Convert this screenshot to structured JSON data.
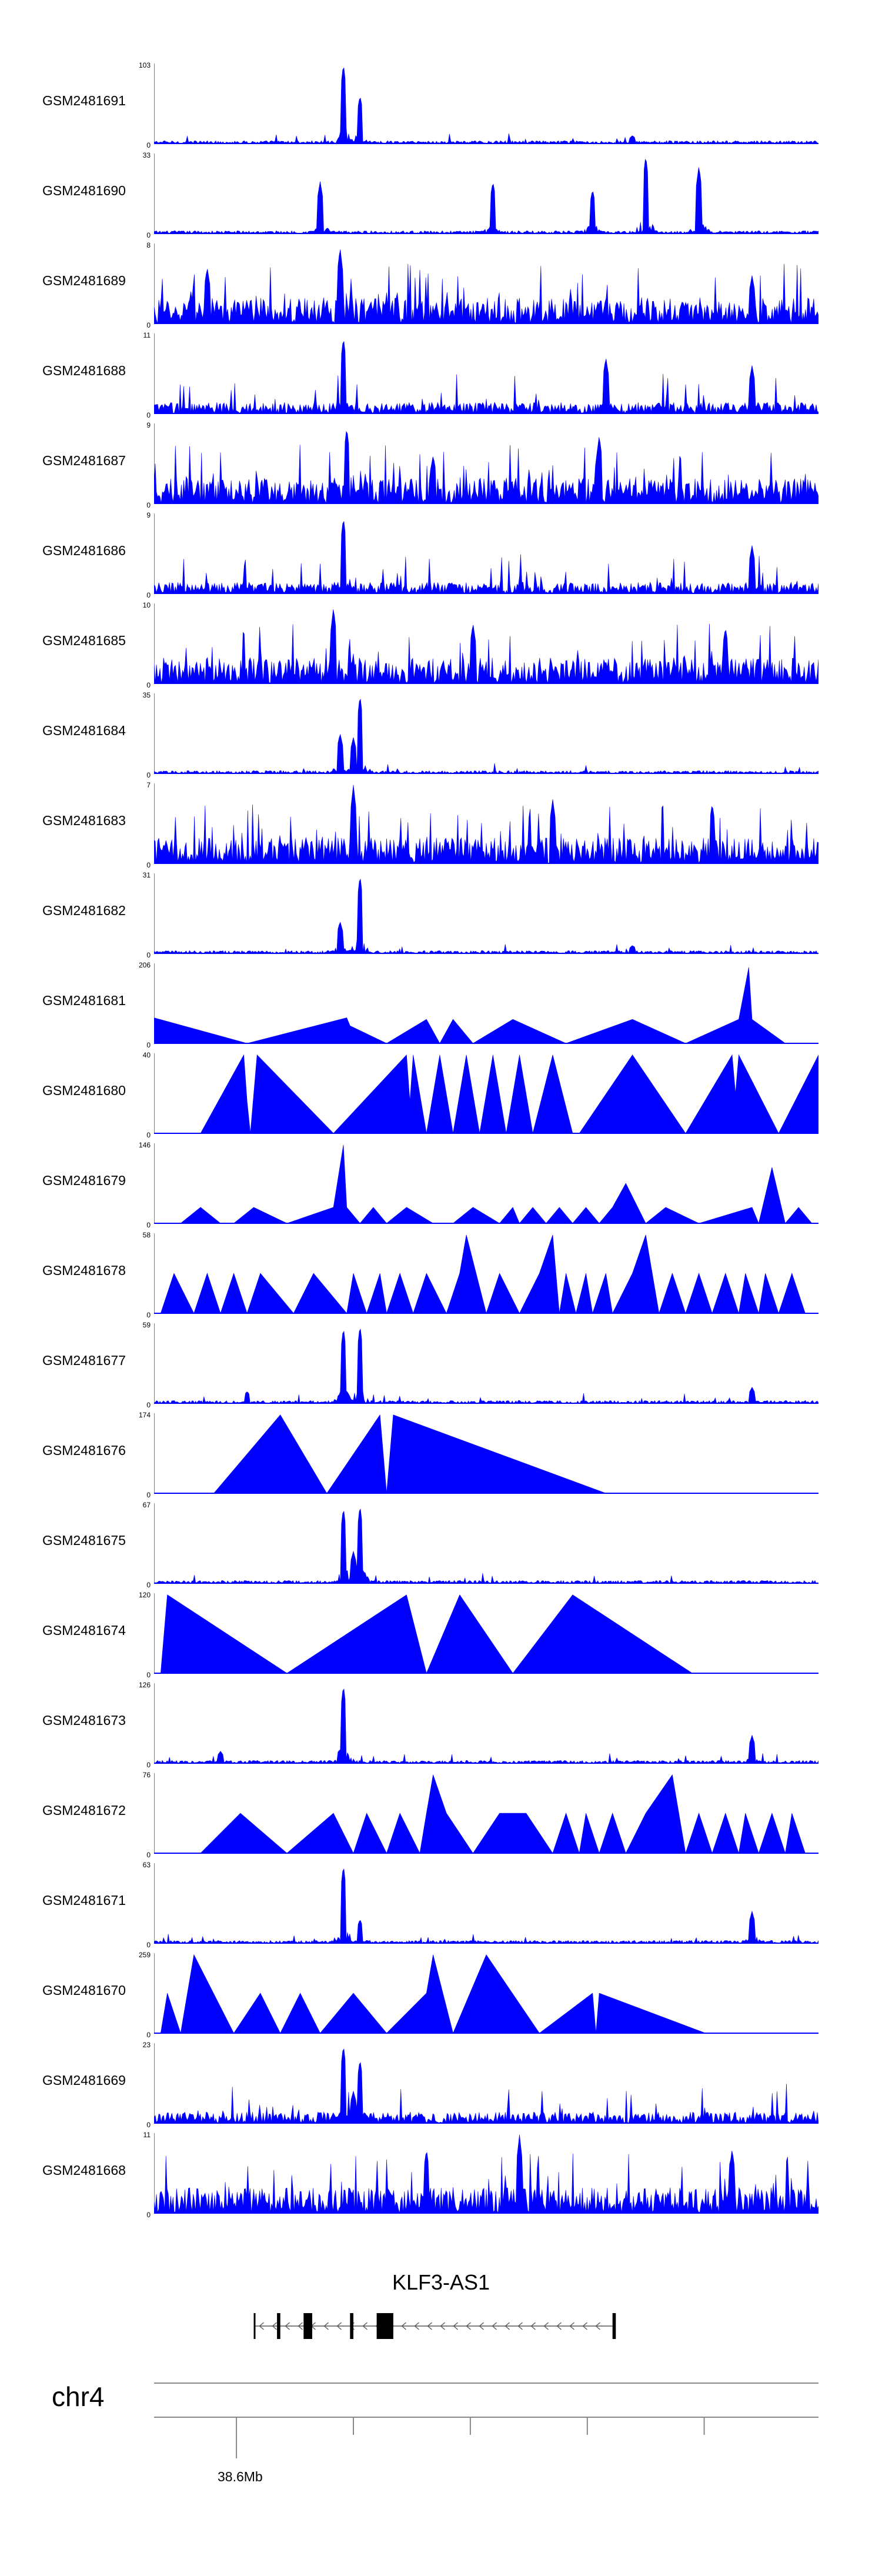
{
  "chart_data": {
    "type": "area",
    "title": "",
    "tracks": [
      {
        "name": "GSM2481691",
        "max": "103",
        "min": "0",
        "pattern": "sparse",
        "peaks": [
          [
            0.285,
            1.0
          ],
          [
            0.31,
            0.6
          ],
          [
            0.72,
            0.1
          ]
        ]
      },
      {
        "name": "GSM2481690",
        "max": "33",
        "min": "0",
        "pattern": "triangles-dense",
        "peaks": [
          [
            0.25,
            0.65
          ],
          [
            0.51,
            0.65
          ],
          [
            0.74,
            0.98
          ],
          [
            0.82,
            0.85
          ],
          [
            0.66,
            0.55
          ]
        ]
      },
      {
        "name": "GSM2481689",
        "max": "8",
        "min": "0",
        "pattern": "dense",
        "peaks": [
          [
            0.28,
            0.95
          ],
          [
            0.08,
            0.7
          ],
          [
            0.9,
            0.6
          ]
        ]
      },
      {
        "name": "GSM2481688",
        "max": "11",
        "min": "0",
        "pattern": "medium",
        "peaks": [
          [
            0.285,
            0.95
          ],
          [
            0.68,
            0.7
          ],
          [
            0.9,
            0.6
          ]
        ]
      },
      {
        "name": "GSM2481687",
        "max": "9",
        "min": "0",
        "pattern": "dense",
        "peaks": [
          [
            0.29,
            0.95
          ],
          [
            0.67,
            0.85
          ],
          [
            0.42,
            0.6
          ]
        ]
      },
      {
        "name": "GSM2481686",
        "max": "9",
        "min": "0",
        "pattern": "medium",
        "peaks": [
          [
            0.285,
            0.95
          ],
          [
            0.9,
            0.6
          ]
        ]
      },
      {
        "name": "GSM2481685",
        "max": "10",
        "min": "0",
        "pattern": "dense",
        "peaks": [
          [
            0.27,
            0.95
          ],
          [
            0.48,
            0.75
          ],
          [
            0.86,
            0.7
          ]
        ]
      },
      {
        "name": "GSM2481684",
        "max": "35",
        "min": "0",
        "pattern": "sparse",
        "peaks": [
          [
            0.31,
            0.98
          ],
          [
            0.28,
            0.5
          ],
          [
            0.3,
            0.45
          ]
        ]
      },
      {
        "name": "GSM2481683",
        "max": "7",
        "min": "0",
        "pattern": "dense",
        "peaks": [
          [
            0.3,
            0.98
          ],
          [
            0.6,
            0.8
          ],
          [
            0.84,
            0.75
          ]
        ]
      },
      {
        "name": "GSM2481682",
        "max": "31",
        "min": "0",
        "pattern": "sparse",
        "peaks": [
          [
            0.31,
            0.98
          ],
          [
            0.28,
            0.4
          ],
          [
            0.72,
            0.1
          ]
        ]
      },
      {
        "name": "GSM2481681",
        "max": "206",
        "min": "0",
        "pattern": "triangles",
        "points": [
          [
            0.0,
            0.32
          ],
          [
            0.14,
            0.0
          ],
          [
            0.29,
            0.32
          ],
          [
            0.295,
            0.22
          ],
          [
            0.35,
            0.0
          ],
          [
            0.41,
            0.3
          ],
          [
            0.43,
            0.0
          ],
          [
            0.45,
            0.3
          ],
          [
            0.48,
            0.0
          ],
          [
            0.54,
            0.3
          ],
          [
            0.62,
            0.0
          ],
          [
            0.72,
            0.3
          ],
          [
            0.8,
            0.0
          ],
          [
            0.88,
            0.3
          ],
          [
            0.895,
            0.95
          ],
          [
            0.9,
            0.3
          ],
          [
            0.95,
            0.0
          ]
        ]
      },
      {
        "name": "GSM2481680",
        "max": "40",
        "min": "0",
        "pattern": "triangles",
        "points": [
          [
            0.07,
            0.0
          ],
          [
            0.135,
            0.98
          ],
          [
            0.14,
            0.4
          ],
          [
            0.145,
            0.0
          ],
          [
            0.155,
            0.98
          ],
          [
            0.27,
            0.0
          ],
          [
            0.38,
            0.98
          ],
          [
            0.385,
            0.4
          ],
          [
            0.39,
            0.98
          ],
          [
            0.41,
            0.0
          ],
          [
            0.43,
            0.98
          ],
          [
            0.45,
            0.0
          ],
          [
            0.47,
            0.98
          ],
          [
            0.49,
            0.0
          ],
          [
            0.51,
            0.98
          ],
          [
            0.53,
            0.0
          ],
          [
            0.55,
            0.98
          ],
          [
            0.57,
            0.0
          ],
          [
            0.6,
            0.98
          ],
          [
            0.63,
            0.0
          ],
          [
            0.64,
            0.0
          ],
          [
            0.72,
            0.98
          ],
          [
            0.8,
            0.0
          ],
          [
            0.87,
            0.98
          ],
          [
            0.875,
            0.5
          ],
          [
            0.88,
            0.98
          ],
          [
            0.94,
            0.0
          ],
          [
            1.0,
            0.98
          ],
          [
            1.0,
            0.0
          ]
        ]
      },
      {
        "name": "GSM2481679",
        "max": "146",
        "min": "0",
        "pattern": "triangles-peaks",
        "points": [
          [
            0.04,
            0.0
          ],
          [
            0.07,
            0.2
          ],
          [
            0.1,
            0.0
          ],
          [
            0.12,
            0.0
          ],
          [
            0.15,
            0.2
          ],
          [
            0.2,
            0.0
          ],
          [
            0.27,
            0.2
          ],
          [
            0.285,
            0.98
          ],
          [
            0.29,
            0.2
          ],
          [
            0.31,
            0.0
          ],
          [
            0.33,
            0.2
          ],
          [
            0.35,
            0.0
          ],
          [
            0.38,
            0.2
          ],
          [
            0.42,
            0.0
          ],
          [
            0.45,
            0.0
          ],
          [
            0.48,
            0.2
          ],
          [
            0.52,
            0.0
          ],
          [
            0.54,
            0.2
          ],
          [
            0.55,
            0.0
          ],
          [
            0.57,
            0.2
          ],
          [
            0.59,
            0.0
          ],
          [
            0.61,
            0.2
          ],
          [
            0.63,
            0.0
          ],
          [
            0.65,
            0.2
          ],
          [
            0.67,
            0.0
          ],
          [
            0.69,
            0.2
          ],
          [
            0.71,
            0.5
          ],
          [
            0.74,
            0.0
          ],
          [
            0.77,
            0.2
          ],
          [
            0.82,
            0.0
          ],
          [
            0.9,
            0.2
          ],
          [
            0.91,
            0.0
          ],
          [
            0.93,
            0.7
          ],
          [
            0.95,
            0.0
          ],
          [
            0.97,
            0.2
          ],
          [
            0.99,
            0.0
          ]
        ]
      },
      {
        "name": "GSM2481678",
        "max": "58",
        "min": "0",
        "pattern": "triangles-peaks",
        "points": [
          [
            0.01,
            0.0
          ],
          [
            0.03,
            0.5
          ],
          [
            0.06,
            0.0
          ],
          [
            0.08,
            0.5
          ],
          [
            0.1,
            0.0
          ],
          [
            0.12,
            0.5
          ],
          [
            0.14,
            0.0
          ],
          [
            0.16,
            0.5
          ],
          [
            0.21,
            0.0
          ],
          [
            0.24,
            0.5
          ],
          [
            0.29,
            0.0
          ],
          [
            0.3,
            0.5
          ],
          [
            0.32,
            0.0
          ],
          [
            0.34,
            0.5
          ],
          [
            0.35,
            0.0
          ],
          [
            0.37,
            0.5
          ],
          [
            0.39,
            0.0
          ],
          [
            0.41,
            0.5
          ],
          [
            0.44,
            0.0
          ],
          [
            0.46,
            0.5
          ],
          [
            0.47,
            0.98
          ],
          [
            0.5,
            0.0
          ],
          [
            0.52,
            0.5
          ],
          [
            0.55,
            0.0
          ],
          [
            0.58,
            0.5
          ],
          [
            0.6,
            0.98
          ],
          [
            0.61,
            0.0
          ],
          [
            0.62,
            0.5
          ],
          [
            0.635,
            0.0
          ],
          [
            0.65,
            0.5
          ],
          [
            0.66,
            0.0
          ],
          [
            0.68,
            0.5
          ],
          [
            0.69,
            0.0
          ],
          [
            0.72,
            0.5
          ],
          [
            0.74,
            0.98
          ],
          [
            0.76,
            0.0
          ],
          [
            0.78,
            0.5
          ],
          [
            0.8,
            0.0
          ],
          [
            0.82,
            0.5
          ],
          [
            0.84,
            0.0
          ],
          [
            0.86,
            0.5
          ],
          [
            0.88,
            0.0
          ],
          [
            0.89,
            0.5
          ],
          [
            0.91,
            0.0
          ],
          [
            0.92,
            0.5
          ],
          [
            0.94,
            0.0
          ],
          [
            0.96,
            0.5
          ],
          [
            0.98,
            0.0
          ]
        ]
      },
      {
        "name": "GSM2481677",
        "max": "59",
        "min": "0",
        "pattern": "sparse",
        "peaks": [
          [
            0.285,
            0.95
          ],
          [
            0.31,
            0.98
          ],
          [
            0.14,
            0.15
          ],
          [
            0.9,
            0.2
          ]
        ]
      },
      {
        "name": "GSM2481676",
        "max": "174",
        "min": "0",
        "pattern": "triangles",
        "points": [
          [
            0.09,
            0.0
          ],
          [
            0.19,
            0.98
          ],
          [
            0.26,
            0.0
          ],
          [
            0.34,
            0.98
          ],
          [
            0.35,
            0.0
          ],
          [
            0.36,
            0.98
          ],
          [
            0.68,
            0.0
          ]
        ]
      },
      {
        "name": "GSM2481675",
        "max": "67",
        "min": "0",
        "pattern": "sparse",
        "peaks": [
          [
            0.285,
            0.95
          ],
          [
            0.31,
            0.98
          ],
          [
            0.3,
            0.4
          ]
        ]
      },
      {
        "name": "GSM2481674",
        "max": "120",
        "min": "0",
        "pattern": "triangles",
        "points": [
          [
            0.01,
            0.0
          ],
          [
            0.02,
            0.98
          ],
          [
            0.2,
            0.0
          ],
          [
            0.38,
            0.98
          ],
          [
            0.41,
            0.0
          ],
          [
            0.46,
            0.98
          ],
          [
            0.54,
            0.0
          ],
          [
            0.63,
            0.98
          ],
          [
            0.81,
            0.0
          ]
        ]
      },
      {
        "name": "GSM2481673",
        "max": "126",
        "min": "0",
        "pattern": "sparse",
        "peaks": [
          [
            0.285,
            0.98
          ],
          [
            0.1,
            0.15
          ],
          [
            0.9,
            0.35
          ]
        ]
      },
      {
        "name": "GSM2481672",
        "max": "76",
        "min": "0",
        "pattern": "triangles-peaks",
        "points": [
          [
            0.07,
            0.0
          ],
          [
            0.13,
            0.5
          ],
          [
            0.2,
            0.0
          ],
          [
            0.27,
            0.5
          ],
          [
            0.3,
            0.0
          ],
          [
            0.32,
            0.5
          ],
          [
            0.35,
            0.0
          ],
          [
            0.37,
            0.5
          ],
          [
            0.4,
            0.0
          ],
          [
            0.41,
            0.5
          ],
          [
            0.42,
            0.98
          ],
          [
            0.44,
            0.5
          ],
          [
            0.48,
            0.0
          ],
          [
            0.52,
            0.5
          ],
          [
            0.56,
            0.5
          ],
          [
            0.6,
            0.0
          ],
          [
            0.62,
            0.5
          ],
          [
            0.64,
            0.0
          ],
          [
            0.65,
            0.5
          ],
          [
            0.67,
            0.0
          ],
          [
            0.69,
            0.5
          ],
          [
            0.71,
            0.0
          ],
          [
            0.74,
            0.5
          ],
          [
            0.78,
            0.98
          ],
          [
            0.8,
            0.0
          ],
          [
            0.82,
            0.5
          ],
          [
            0.84,
            0.0
          ],
          [
            0.86,
            0.5
          ],
          [
            0.88,
            0.0
          ],
          [
            0.89,
            0.5
          ],
          [
            0.91,
            0.0
          ],
          [
            0.93,
            0.5
          ],
          [
            0.95,
            0.0
          ],
          [
            0.96,
            0.5
          ],
          [
            0.98,
            0.0
          ]
        ]
      },
      {
        "name": "GSM2481671",
        "max": "63",
        "min": "0",
        "pattern": "sparse",
        "peaks": [
          [
            0.285,
            0.98
          ],
          [
            0.31,
            0.3
          ],
          [
            0.9,
            0.4
          ]
        ]
      },
      {
        "name": "GSM2481670",
        "max": "259",
        "min": "0",
        "pattern": "triangles-peaks",
        "points": [
          [
            0.01,
            0.0
          ],
          [
            0.02,
            0.5
          ],
          [
            0.04,
            0.0
          ],
          [
            0.06,
            0.98
          ],
          [
            0.12,
            0.0
          ],
          [
            0.16,
            0.5
          ],
          [
            0.19,
            0.0
          ],
          [
            0.22,
            0.5
          ],
          [
            0.25,
            0.0
          ],
          [
            0.3,
            0.5
          ],
          [
            0.35,
            0.0
          ],
          [
            0.41,
            0.5
          ],
          [
            0.42,
            0.98
          ],
          [
            0.45,
            0.0
          ],
          [
            0.5,
            0.98
          ],
          [
            0.58,
            0.0
          ],
          [
            0.66,
            0.5
          ],
          [
            0.665,
            0.0
          ],
          [
            0.67,
            0.5
          ],
          [
            0.83,
            0.0
          ]
        ]
      },
      {
        "name": "GSM2481669",
        "max": "23",
        "min": "0",
        "pattern": "medium",
        "peaks": [
          [
            0.285,
            0.98
          ],
          [
            0.31,
            0.8
          ],
          [
            0.3,
            0.4
          ]
        ]
      },
      {
        "name": "GSM2481668",
        "max": "11",
        "min": "0",
        "pattern": "dense",
        "peaks": [
          [
            0.55,
            0.98
          ],
          [
            0.41,
            0.8
          ],
          [
            0.87,
            0.8
          ]
        ]
      }
    ],
    "gene": {
      "name": "KLF3-AS1",
      "start": 0.15,
      "end": 0.69,
      "exons": [
        [
          0.15,
          0.152
        ],
        [
          0.185,
          0.19
        ],
        [
          0.225,
          0.238
        ],
        [
          0.295,
          0.3
        ],
        [
          0.335,
          0.36
        ],
        [
          0.69,
          0.695
        ]
      ]
    },
    "axis": {
      "chromosome": "chr4",
      "tick_label": "38.6Mb",
      "tick_label_index": 0
    },
    "colors": {
      "track_fill": "#0000ff",
      "axis": "#000000",
      "gene": "#000000"
    }
  }
}
